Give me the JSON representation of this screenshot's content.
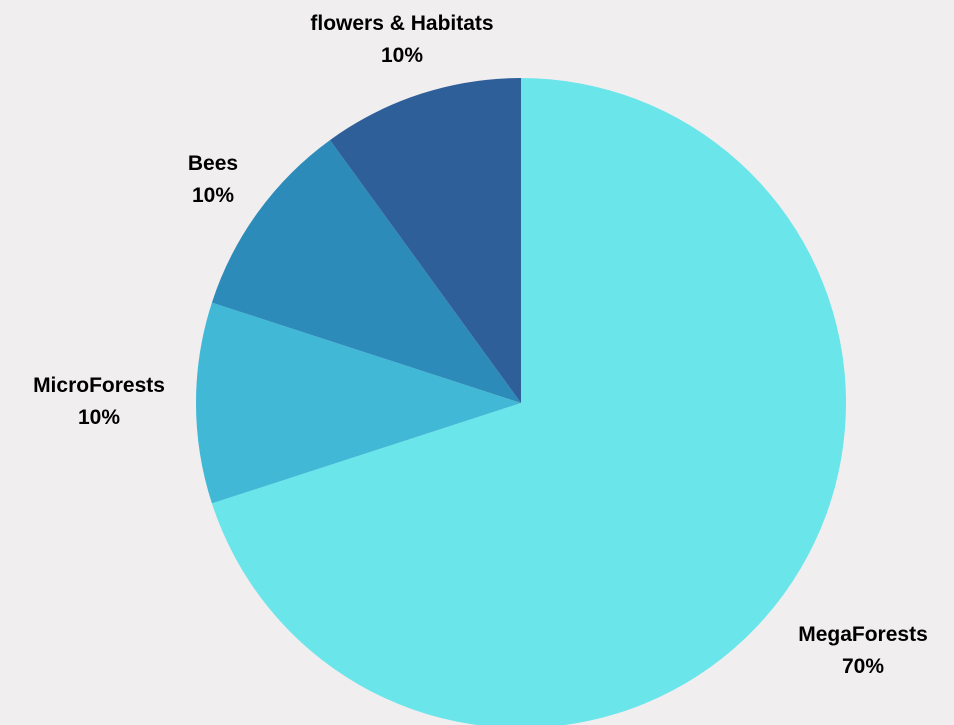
{
  "chart_data": {
    "type": "pie",
    "title": "",
    "slices": [
      {
        "label": "MegaForests",
        "percent_label": "70%",
        "value": 70,
        "color": "#6ae5ea"
      },
      {
        "label": "MicroForests",
        "percent_label": "10%",
        "value": 10,
        "color": "#41b8d6"
      },
      {
        "label": "Bees",
        "percent_label": "10%",
        "value": 10,
        "color": "#2d8bba"
      },
      {
        "label": "flowers & Habitats",
        "percent_label": "10%",
        "value": 10,
        "color": "#2e5f99"
      }
    ],
    "start": "top",
    "direction": "clockwise",
    "legend": "none",
    "label_placement": "outside"
  }
}
